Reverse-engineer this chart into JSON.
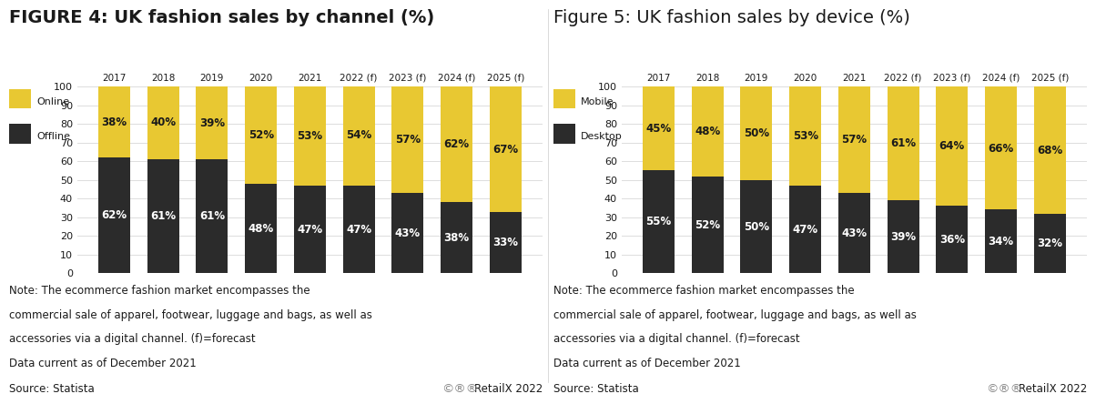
{
  "fig1": {
    "title": "FIGURE 4: UK fashion sales by channel (%)",
    "title_weight": "bold",
    "categories": [
      "2017",
      "2018",
      "2019",
      "2020",
      "2021",
      "2022 (f)",
      "2023 (f)",
      "2024 (f)",
      "2025 (f)"
    ],
    "top_vals": [
      38,
      40,
      39,
      52,
      53,
      54,
      57,
      62,
      67
    ],
    "bottom_vals": [
      62,
      61,
      61,
      48,
      47,
      47,
      43,
      38,
      33
    ],
    "legend_top": "Online",
    "legend_bottom": "Offline",
    "color_top": "#E8C832",
    "color_bottom": "#2B2B2B"
  },
  "fig2": {
    "title": "Figure 5: UK fashion sales by device (%)",
    "title_weight": "normal",
    "categories": [
      "2017",
      "2018",
      "2019",
      "2020",
      "2021",
      "2022 (f)",
      "2023 (f)",
      "2024 (f)",
      "2025 (f)"
    ],
    "top_vals": [
      45,
      48,
      50,
      53,
      57,
      61,
      64,
      66,
      68
    ],
    "bottom_vals": [
      55,
      52,
      50,
      47,
      43,
      39,
      36,
      34,
      32
    ],
    "legend_top": "Mobile",
    "legend_bottom": "Desktop",
    "color_top": "#E8C832",
    "color_bottom": "#2B2B2B"
  },
  "note_line1": "Note: The ecommerce fashion market encompasses the",
  "note_line2": "commercial sale of apparel, footwear, luggage and bags, as well as",
  "note_line3": "accessories via a digital channel. (f)=forecast",
  "note_line4": "Data current as of December 2021",
  "source_text": "Source: Statista",
  "retailx_text": "RetailX 2022",
  "cc_icons": "Ⓒⓘ⊜",
  "background_color": "#FFFFFF",
  "text_color": "#1A1A1A",
  "grid_color": "#DDDDDD",
  "yticks": [
    0,
    10,
    20,
    30,
    40,
    50,
    60,
    70,
    80,
    90,
    100
  ],
  "bar_width": 0.65,
  "title_fontsize": 14,
  "label_fontsize": 8.5,
  "tick_fontsize": 8,
  "note_fontsize": 8.5
}
